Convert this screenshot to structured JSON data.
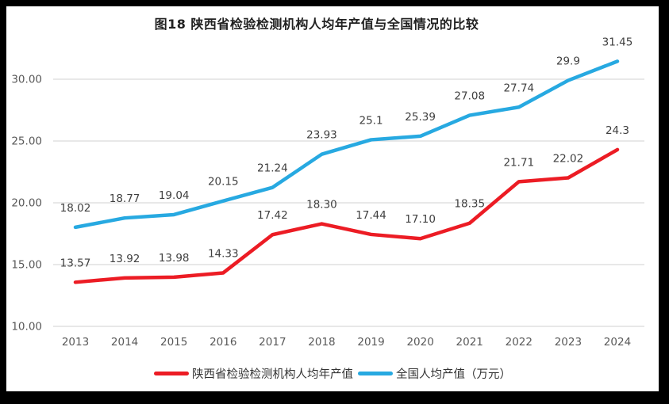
{
  "chart_data": {
    "type": "line",
    "title": "图18 陕西省检验检测机构人均年产值与全国情况的比较",
    "categories": [
      "2013",
      "2014",
      "2015",
      "2016",
      "2017",
      "2018",
      "2019",
      "2020",
      "2021",
      "2022",
      "2023",
      "2024"
    ],
    "series": [
      {
        "id": "shaanxi",
        "name": "陕西省检验检测机构人均年产值",
        "color": "#ec1c24",
        "values": [
          13.57,
          13.92,
          13.98,
          14.33,
          17.42,
          18.3,
          17.44,
          17.1,
          18.35,
          21.71,
          22.02,
          24.3
        ],
        "labels": [
          "13.57",
          "13.92",
          "13.98",
          "14.33",
          "17.42",
          "18.30",
          "17.44",
          "17.10",
          "18.35",
          "21.71",
          "22.02",
          "24.3"
        ]
      },
      {
        "id": "national",
        "name": "全国人均产值（万元）",
        "color": "#27a9e1",
        "values": [
          18.02,
          18.77,
          19.04,
          20.15,
          21.24,
          23.93,
          25.1,
          25.39,
          27.08,
          27.74,
          29.9,
          31.45
        ],
        "labels": [
          "18.02",
          "18.77",
          "19.04",
          "20.15",
          "21.24",
          "23.93",
          "25.1",
          "25.39",
          "27.08",
          "27.74",
          "29.9",
          "31.45"
        ]
      }
    ],
    "y_axis": {
      "tick_labels": [
        "30.00",
        "25.00",
        "20.00",
        "15.00",
        "10.00"
      ],
      "tick_values": [
        30,
        25,
        20,
        15,
        10
      ],
      "min": 10,
      "max": 32.5
    },
    "grid": true,
    "gridline_color": "#d9d9d9",
    "legend_position": "bottom"
  }
}
